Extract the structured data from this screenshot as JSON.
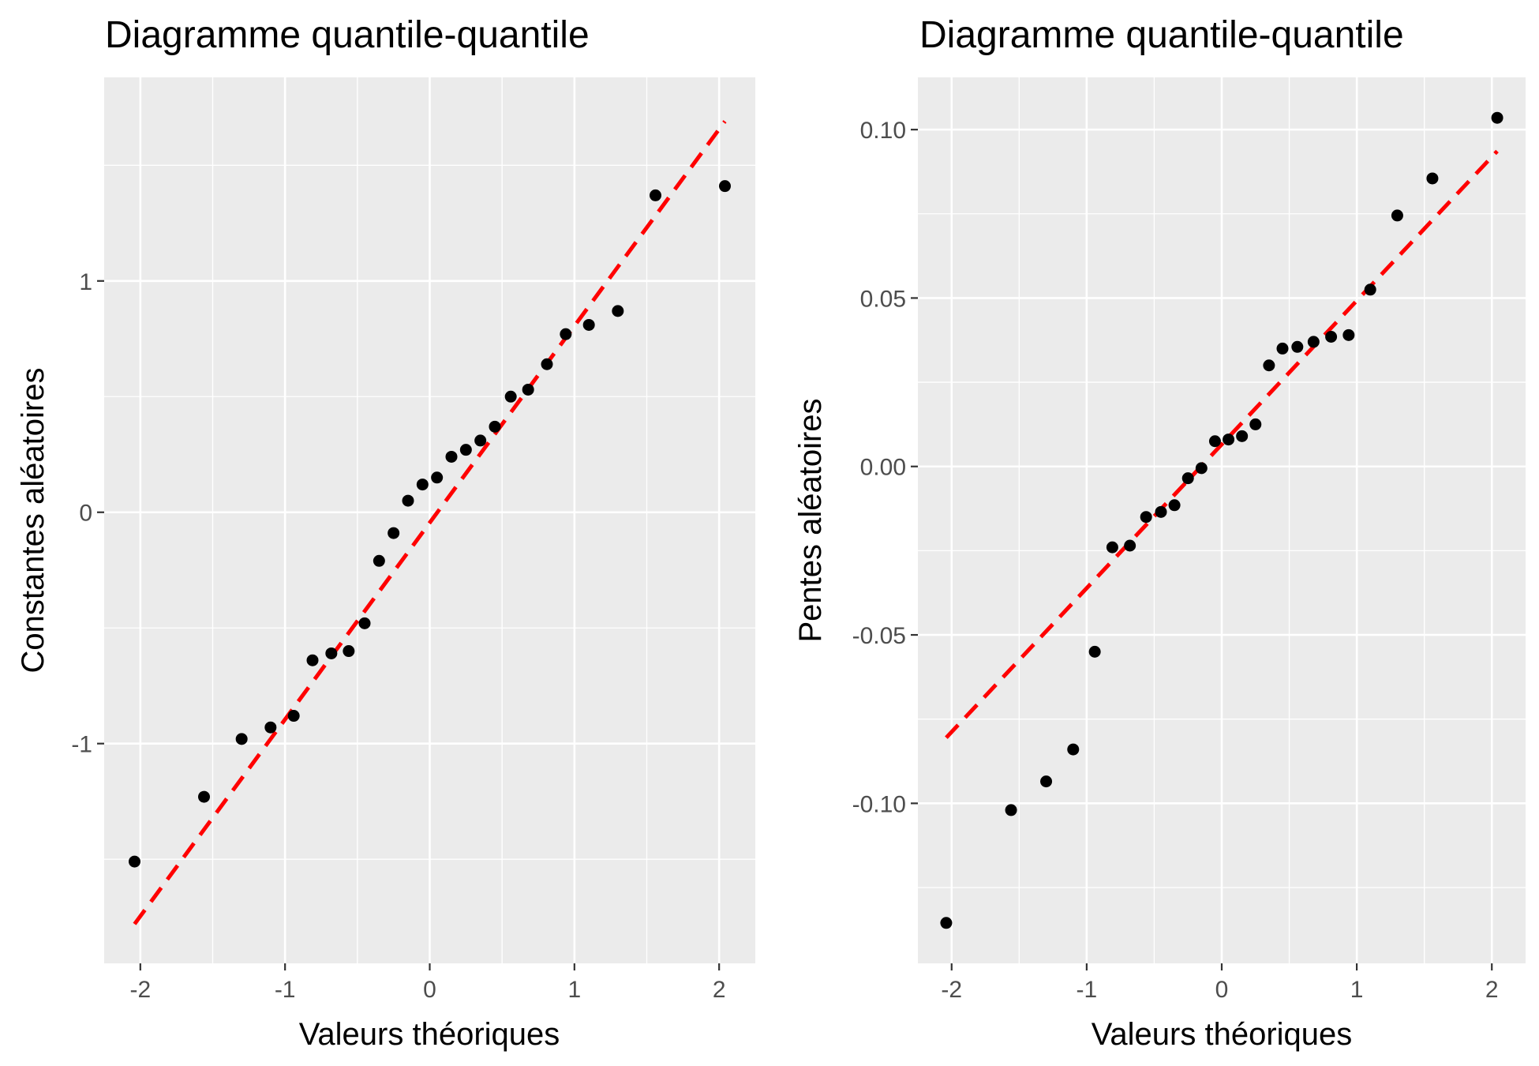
{
  "colors": {
    "panel_background": "#ebebeb",
    "grid": "#ffffff",
    "points": "#000000",
    "reference_line": "#ff0000",
    "tick_text": "#4d4d4d"
  },
  "chart_data": [
    {
      "type": "scatter",
      "title": "Diagramme quantile-quantile",
      "xlabel": "Valeurs théoriques",
      "ylabel": "Constantes aléatoires",
      "xlim": [
        -2.25,
        2.25
      ],
      "ylim": [
        -1.95,
        1.88
      ],
      "x_ticks": [
        -2,
        -1,
        0,
        1,
        2
      ],
      "x_tick_labels": [
        "-2",
        "-1",
        "0",
        "1",
        "2"
      ],
      "y_ticks": [
        -1,
        0,
        1
      ],
      "y_tick_labels": [
        "-1",
        "0",
        "1"
      ],
      "grid": true,
      "reference_line": {
        "style": "dashed",
        "x": [
          -2.04,
          2.04
        ],
        "y": [
          -1.78,
          1.69
        ]
      },
      "points": {
        "x": [
          -2.04,
          -1.56,
          -1.3,
          -1.1,
          -0.94,
          -0.81,
          -0.68,
          -0.56,
          -0.45,
          -0.35,
          -0.25,
          -0.15,
          -0.05,
          0.05,
          0.15,
          0.25,
          0.35,
          0.45,
          0.56,
          0.68,
          0.81,
          0.94,
          1.1,
          1.3,
          1.56,
          2.04
        ],
        "y": [
          -1.51,
          -1.23,
          -0.98,
          -0.93,
          -0.88,
          -0.64,
          -0.61,
          -0.6,
          -0.48,
          -0.21,
          -0.09,
          0.05,
          0.12,
          0.15,
          0.24,
          0.27,
          0.31,
          0.37,
          0.5,
          0.53,
          0.64,
          0.77,
          0.81,
          0.87,
          1.37,
          1.41
        ]
      }
    },
    {
      "type": "scatter",
      "title": "Diagramme quantile-quantile",
      "xlabel": "Valeurs théoriques",
      "ylabel": "Pentes aléatoires",
      "xlim": [
        -2.25,
        2.25
      ],
      "ylim": [
        -0.1475,
        0.1155
      ],
      "x_ticks": [
        -2,
        -1,
        0,
        1,
        2
      ],
      "x_tick_labels": [
        "-2",
        "-1",
        "0",
        "1",
        "2"
      ],
      "y_ticks": [
        -0.1,
        -0.05,
        0.0,
        0.05,
        0.1
      ],
      "y_tick_labels": [
        "-0.10",
        "-0.05",
        "0.00",
        "0.05",
        "0.10"
      ],
      "grid": true,
      "reference_line": {
        "style": "dashed",
        "x": [
          -2.04,
          2.04
        ],
        "y": [
          -0.0805,
          0.0936
        ]
      },
      "points": {
        "x": [
          -2.04,
          -1.56,
          -1.3,
          -1.1,
          -0.94,
          -0.81,
          -0.68,
          -0.56,
          -0.45,
          -0.35,
          -0.25,
          -0.15,
          -0.05,
          0.05,
          0.15,
          0.25,
          0.35,
          0.45,
          0.56,
          0.68,
          0.81,
          0.94,
          1.1,
          1.3,
          1.56,
          2.04
        ],
        "y": [
          -0.1355,
          -0.102,
          -0.0935,
          -0.084,
          -0.055,
          -0.024,
          -0.0235,
          -0.015,
          -0.0135,
          -0.0115,
          -0.0035,
          -0.0005,
          0.0075,
          0.008,
          0.009,
          0.0125,
          0.03,
          0.035,
          0.0355,
          0.037,
          0.0385,
          0.039,
          0.0525,
          0.0745,
          0.0855,
          0.1035
        ]
      }
    }
  ]
}
